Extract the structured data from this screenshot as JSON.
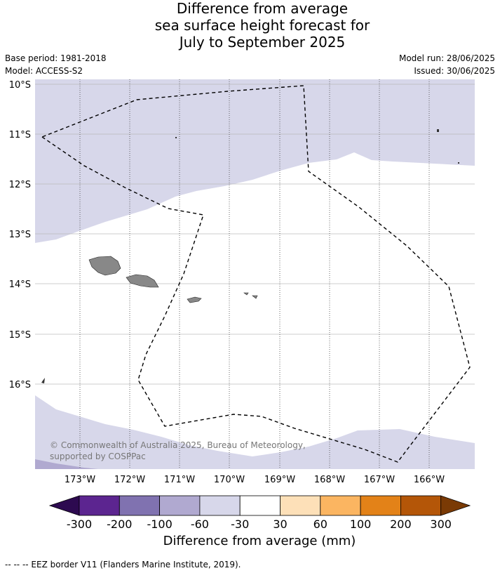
{
  "title_lines": [
    "Difference from average",
    "sea surface height forecast for",
    "July to September 2025"
  ],
  "meta": {
    "base_period": "Base period: 1981-2018",
    "model": "Model: ACCESS-S2",
    "model_run": "Model run: 28/06/2025",
    "issued": "Issued: 30/06/2025"
  },
  "map": {
    "lat_labels": [
      "10°S",
      "11°S",
      "12°S",
      "13°S",
      "14°S",
      "15°S",
      "16°S"
    ],
    "lon_labels": [
      "173°W",
      "172°W",
      "171°W",
      "170°W",
      "169°W",
      "168°W",
      "167°W",
      "166°W"
    ],
    "lon_range": [
      -173.9,
      -165.1
    ],
    "lat_range": [
      -9.9,
      -17.7
    ],
    "copyright": "© Commonwealth of Australia 2025, Bureau of Meteorology, supported by COSPPac",
    "colors": {
      "light": "#d7d7ea",
      "mid": "#b0a9d0",
      "land": "#888888",
      "grid": "#cccccc"
    }
  },
  "colorbar": {
    "ticks": [
      "-300",
      "-200",
      "-100",
      "-60",
      "-30",
      "30",
      "60",
      "100",
      "200",
      "300"
    ],
    "colors": [
      "#2d0a50",
      "#5c2590",
      "#8072b0",
      "#b0a9d0",
      "#d7d7ea",
      "#ffffff",
      "#fde0b8",
      "#fbb561",
      "#e38218",
      "#b45608",
      "#7a3a05"
    ],
    "title": "Difference from average (mm)"
  },
  "footnote": "--  --  -- EEZ border V11 (Flanders Marine Institute, 2019)."
}
